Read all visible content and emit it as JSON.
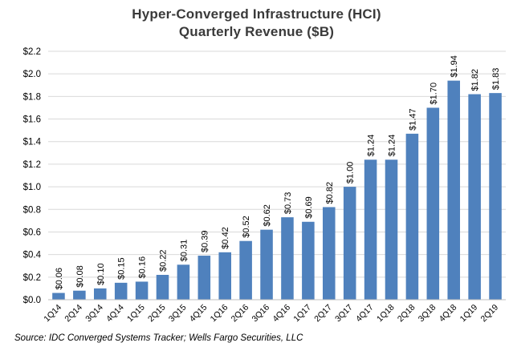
{
  "chart_data": {
    "type": "bar",
    "title": "Hyper-Converged Infrastructure (HCI)",
    "subtitle": "Quarterly Revenue ($B)",
    "categories": [
      "1Q14",
      "2Q14",
      "3Q14",
      "4Q14",
      "1Q15",
      "2Q15",
      "3Q15",
      "4Q15",
      "1Q16",
      "2Q16",
      "3Q16",
      "4Q16",
      "1Q17",
      "2Q17",
      "3Q17",
      "4Q17",
      "1Q18",
      "2Q18",
      "3Q18",
      "4Q18",
      "1Q19",
      "2Q19"
    ],
    "values": [
      0.06,
      0.08,
      0.1,
      0.15,
      0.16,
      0.22,
      0.31,
      0.39,
      0.42,
      0.52,
      0.62,
      0.73,
      0.69,
      0.82,
      1.0,
      1.24,
      1.24,
      1.47,
      1.7,
      1.94,
      1.82,
      1.83
    ],
    "data_labels": [
      "$0.06",
      "$0.08",
      "$0.10",
      "$0.15",
      "$0.16",
      "$0.22",
      "$0.31",
      "$0.39",
      "$0.42",
      "$0.52",
      "$0.62",
      "$0.73",
      "$0.69",
      "$0.82",
      "$1.00",
      "$1.24",
      "$1.24",
      "$1.47",
      "$1.70",
      "$1.94",
      "$1.82",
      "$1.83"
    ],
    "yticks": [
      0.0,
      0.2,
      0.4,
      0.6,
      0.8,
      1.0,
      1.2,
      1.4,
      1.6,
      1.8,
      2.0,
      2.2
    ],
    "ytick_labels": [
      "$0.0",
      "$0.2",
      "$0.4",
      "$0.6",
      "$0.8",
      "$1.0",
      "$1.2",
      "$1.4",
      "$1.6",
      "$1.8",
      "$2.0",
      "$2.2"
    ],
    "ylim": [
      0,
      2.2
    ],
    "xlabel": "",
    "ylabel": "",
    "grid": true,
    "legend": "none",
    "bar_color": "#4f81bd",
    "grid_color": "#d9d9d9"
  },
  "source_note": "Source: IDC Converged Systems Tracker; Wells Fargo Securities, LLC"
}
